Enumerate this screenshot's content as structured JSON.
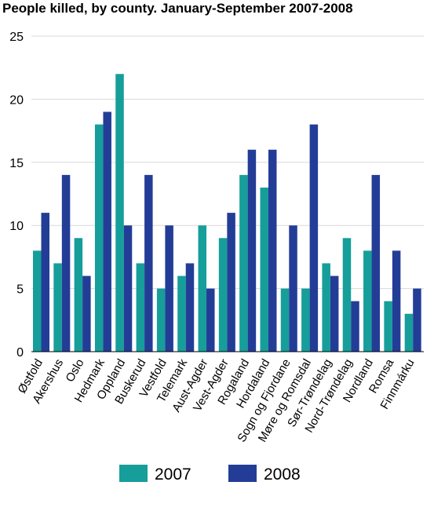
{
  "chart_data": {
    "type": "bar",
    "title": "People killed, by county. January-September 2007-2008",
    "xlabel": "",
    "ylabel": "",
    "ylim": [
      0,
      25
    ],
    "yticks": [
      0,
      5,
      10,
      15,
      20,
      25
    ],
    "grid": true,
    "legend_position": "bottom",
    "categories": [
      "Østfold",
      "Akershus",
      "Oslo",
      "Hedmark",
      "Oppland",
      "Buskerud",
      "Vestfold",
      "Telemark",
      "Aust-Agder",
      "Vest-Agder",
      "Rogaland",
      "Hordaland",
      "Sogn og Fjordane",
      "Møre og Romsdal",
      "Sør-Trøndelag",
      "Nord-Trøndelag",
      "Nordland",
      "Romsa",
      "Finnmárku"
    ],
    "series": [
      {
        "name": "2007",
        "color": "#169e9a",
        "values": [
          8,
          7,
          9,
          18,
          22,
          7,
          5,
          6,
          10,
          9,
          14,
          13,
          5,
          5,
          7,
          9,
          8,
          4,
          3
        ]
      },
      {
        "name": "2008",
        "color": "#233d97",
        "values": [
          11,
          14,
          6,
          19,
          10,
          14,
          10,
          7,
          5,
          11,
          16,
          16,
          10,
          18,
          6,
          4,
          14,
          8,
          5
        ]
      }
    ]
  }
}
